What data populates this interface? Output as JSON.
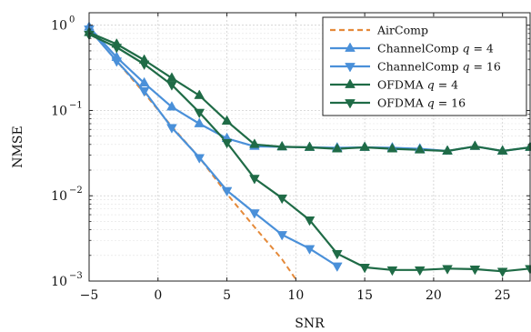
{
  "chart_data": {
    "type": "line",
    "xlabel": "SNR",
    "ylabel": "NMSE",
    "xlim": [
      -5,
      27
    ],
    "ylim": [
      0.001,
      1.4
    ],
    "yscale": "log",
    "x_ticks": [
      -5,
      0,
      5,
      10,
      15,
      20,
      25
    ],
    "y_ticks": [
      {
        "value": 1,
        "base": "10",
        "exp": "0"
      },
      {
        "value": 0.1,
        "base": "10",
        "exp": "−1"
      },
      {
        "value": 0.01,
        "base": "10",
        "exp": "−2"
      },
      {
        "value": 0.001,
        "base": "10",
        "exp": "−3"
      }
    ],
    "grid": true,
    "legend_position": "top-right",
    "series": [
      {
        "name": "AirComp",
        "legend_parts": [
          "AirComp",
          "",
          ""
        ],
        "color": "#e58a3a",
        "dash": "dashed",
        "marker": "none",
        "x": [
          -5,
          -3,
          -1,
          1,
          3,
          5,
          7,
          9,
          10
        ],
        "y": [
          0.9,
          0.38,
          0.16,
          0.065,
          0.028,
          0.0105,
          0.0043,
          0.0018,
          0.00105
        ]
      },
      {
        "name": "ChannelComp q = 4",
        "legend_parts": [
          "ChannelComp ",
          "q",
          " = 4"
        ],
        "color": "#4a90d9",
        "dash": "solid",
        "marker": "triangle-up",
        "x": [
          -5,
          -3,
          -1,
          1,
          3,
          5,
          7,
          9,
          11,
          13,
          15,
          17,
          19,
          21,
          23,
          25,
          27
        ],
        "y": [
          0.95,
          0.42,
          0.21,
          0.11,
          0.07,
          0.047,
          0.038,
          0.0375,
          0.037,
          0.0365,
          0.037,
          0.0365,
          0.0355,
          0.0335,
          0.038,
          0.0335,
          0.037
        ]
      },
      {
        "name": "ChannelComp q = 16",
        "legend_parts": [
          "ChannelComp ",
          "q",
          " = 16"
        ],
        "color": "#4a90d9",
        "dash": "solid",
        "marker": "triangle-down",
        "x": [
          -5,
          -3,
          -1,
          1,
          3,
          5,
          7,
          9,
          11,
          13
        ],
        "y": [
          0.9,
          0.38,
          0.17,
          0.063,
          0.028,
          0.0115,
          0.0063,
          0.0035,
          0.0024,
          0.0015
        ]
      },
      {
        "name": "OFDMA q = 4",
        "legend_parts": [
          "OFDMA ",
          "q",
          " = 4"
        ],
        "color": "#1f6b46",
        "dash": "solid",
        "marker": "triangle-up",
        "x": [
          -5,
          -3,
          -1,
          1,
          3,
          5,
          7,
          9,
          11,
          13,
          15,
          17,
          19,
          21,
          23,
          25,
          27
        ],
        "y": [
          0.82,
          0.6,
          0.39,
          0.24,
          0.15,
          0.075,
          0.04,
          0.0375,
          0.037,
          0.0355,
          0.037,
          0.0355,
          0.0345,
          0.0335,
          0.038,
          0.0335,
          0.037
        ]
      },
      {
        "name": "OFDMA q = 16",
        "legend_parts": [
          "OFDMA ",
          "q",
          " = 16"
        ],
        "color": "#1f6b46",
        "dash": "solid",
        "marker": "triangle-down",
        "x": [
          -5,
          -3,
          -1,
          1,
          3,
          5,
          7,
          9,
          11,
          13,
          15,
          17,
          19,
          21,
          23,
          25,
          27
        ],
        "y": [
          0.78,
          0.55,
          0.35,
          0.2,
          0.095,
          0.042,
          0.016,
          0.0094,
          0.0052,
          0.0021,
          0.00145,
          0.00135,
          0.00135,
          0.0014,
          0.00138,
          0.0013,
          0.0014
        ]
      }
    ]
  }
}
